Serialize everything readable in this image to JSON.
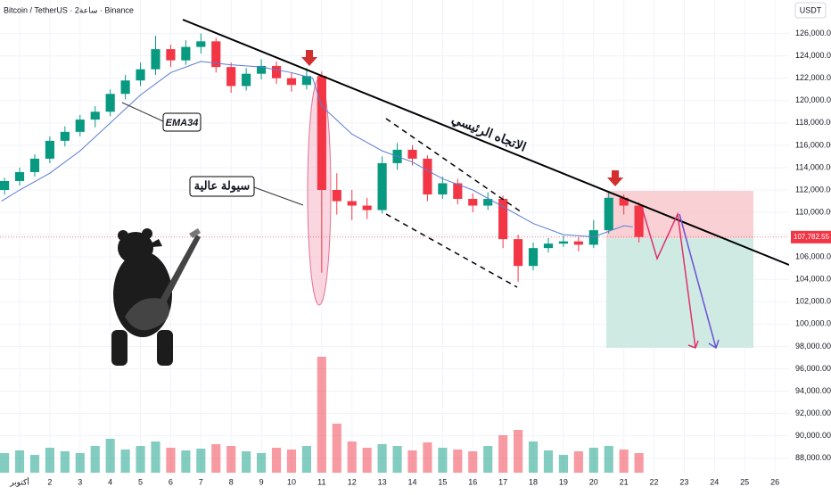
{
  "chart_data": {
    "type": "candlestick",
    "title": "Bitcoin / TetherUS · 2ساعة · Binance",
    "currency": "USDT",
    "annotations": [
      "EMA34",
      "سيولة عالية",
      "الاتجاه الرئيسي"
    ],
    "current_price": {
      "value": 107782.55,
      "label": "107,782.55"
    },
    "xlim": [
      0.35,
      26.47
    ],
    "ylim": [
      86700,
      129000
    ],
    "grid": true,
    "up_color": "#089981",
    "down_color": "#f23645",
    "xticks": [
      {
        "value": 1,
        "label": "أكتوبر"
      },
      2,
      3,
      4,
      5,
      6,
      7,
      8,
      9,
      10,
      11,
      12,
      13,
      14,
      15,
      16,
      17,
      18,
      19,
      20,
      21,
      22,
      23,
      24,
      25,
      26
    ],
    "yticks": [
      {
        "value": 88000,
        "label": "88,000.00"
      },
      {
        "value": 90000,
        "label": "90,000.00"
      },
      {
        "value": 92000,
        "label": "92,000.00"
      },
      {
        "value": 94000,
        "label": "94,000.00"
      },
      {
        "value": 96000,
        "label": "96,000.00"
      },
      {
        "value": 98000,
        "label": "98,000.00"
      },
      {
        "value": 100000,
        "label": "100,000.00"
      },
      {
        "value": 102000,
        "label": "102,000.00"
      },
      {
        "value": 104000,
        "label": "104,000.00"
      },
      {
        "value": 106000,
        "label": "106,000.00"
      },
      {
        "value": 108000,
        "label": "108,000.00"
      },
      {
        "value": 110000,
        "label": "110,000.00"
      },
      {
        "value": 112000,
        "label": "112,000.00"
      },
      {
        "value": 114000,
        "label": "114,000.00"
      },
      {
        "value": 116000,
        "label": "116,000.00"
      },
      {
        "value": 118000,
        "label": "118,000.00"
      },
      {
        "value": 120000,
        "label": "120,000.00"
      },
      {
        "value": 122000,
        "label": "122,000.00"
      },
      {
        "value": 124000,
        "label": "124,000.00"
      },
      {
        "value": 126000,
        "label": "126,000.00"
      }
    ],
    "candles": {
      "x": [
        0.5,
        1,
        1.5,
        2,
        2.5,
        3,
        3.5,
        4,
        4.5,
        5,
        5.5,
        6,
        6.5,
        7,
        7.5,
        8,
        8.5,
        9,
        9.5,
        10,
        10.5,
        11,
        11.5,
        12,
        12.5,
        13,
        13.5,
        14,
        14.5,
        15,
        15.5,
        16,
        16.5,
        17,
        17.5,
        18,
        18.5,
        19,
        19.5,
        20,
        20.5,
        21,
        21.5
      ],
      "open": [
        112000,
        112800,
        113600,
        114800,
        116400,
        117200,
        118300,
        119000,
        120600,
        121800,
        122800,
        124600,
        123600,
        124800,
        125300,
        123000,
        121300,
        122400,
        123100,
        122000,
        121400,
        122200,
        112000,
        111000,
        110600,
        110200,
        114400,
        115600,
        114800,
        111600,
        112600,
        111200,
        110600,
        111200,
        107600,
        105200,
        106800,
        107200,
        107400,
        107100,
        108400,
        111300,
        110600
      ],
      "high": [
        113100,
        114000,
        115200,
        116800,
        117700,
        118700,
        119500,
        121000,
        122300,
        123400,
        125800,
        125000,
        125400,
        126000,
        125600,
        123400,
        122900,
        123700,
        123500,
        122500,
        122900,
        122600,
        113500,
        112000,
        111300,
        115000,
        116200,
        116000,
        115100,
        113200,
        113000,
        111700,
        111800,
        111500,
        108000,
        107300,
        107700,
        107900,
        107800,
        109300,
        111900,
        111600,
        110900
      ],
      "low": [
        111600,
        112400,
        113200,
        114400,
        115900,
        116800,
        117600,
        118600,
        120100,
        121300,
        122300,
        123000,
        123200,
        124200,
        122500,
        120700,
        120900,
        121900,
        121500,
        120800,
        121000,
        104600,
        109800,
        109300,
        109400,
        109900,
        113800,
        114200,
        111000,
        111200,
        110700,
        110000,
        110200,
        106800,
        103800,
        104800,
        106400,
        106900,
        106500,
        106800,
        108100,
        109800,
        107300
      ],
      "close": [
        112800,
        113600,
        114800,
        116400,
        117200,
        118300,
        119000,
        120600,
        121800,
        122800,
        124600,
        123600,
        124800,
        125300,
        123000,
        121300,
        122400,
        123100,
        122000,
        121400,
        122200,
        112000,
        111000,
        110600,
        110200,
        114400,
        115600,
        114800,
        111600,
        112600,
        111200,
        110600,
        111200,
        107600,
        105200,
        106800,
        107200,
        107400,
        107100,
        108400,
        111300,
        110600,
        107800
      ],
      "volume": [
        22,
        25,
        20,
        28,
        24,
        22,
        30,
        38,
        26,
        30,
        35,
        28,
        25,
        27,
        32,
        30,
        24,
        22,
        28,
        26,
        30,
        130,
        55,
        35,
        28,
        32,
        30,
        25,
        34,
        28,
        26,
        24,
        30,
        42,
        48,
        35,
        25,
        20,
        24,
        28,
        30,
        26,
        22
      ]
    },
    "ema": {
      "name": "EMA34",
      "color": "#5b7bd5",
      "x": [
        0.4,
        1,
        2,
        3,
        4,
        5,
        6,
        7,
        8,
        9,
        10,
        10.7,
        11,
        12,
        13,
        14,
        15,
        16,
        17,
        18,
        19,
        20,
        21,
        21.3
      ],
      "values": [
        111000,
        112000,
        113500,
        115500,
        118000,
        120500,
        122500,
        123500,
        123200,
        123000,
        122500,
        122000,
        119500,
        117000,
        115500,
        114500,
        113000,
        112000,
        110500,
        109000,
        108000,
        107800,
        108800,
        108700
      ]
    }
  }
}
